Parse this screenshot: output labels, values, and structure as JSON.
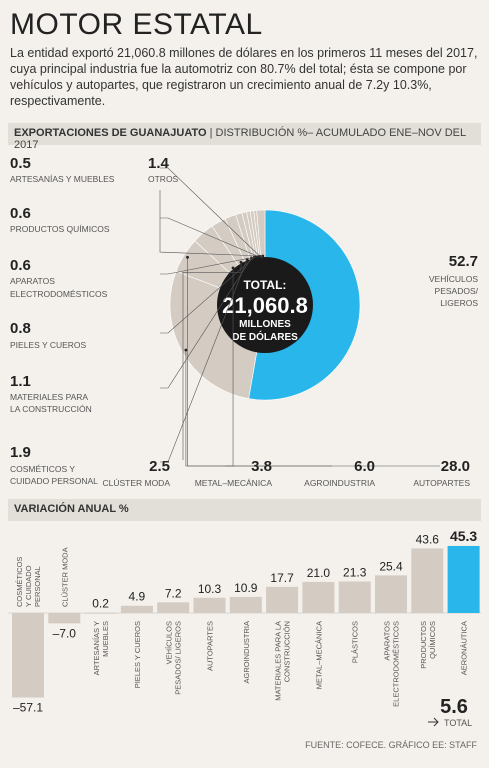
{
  "header": {
    "title": "MOTOR ESTATAL",
    "intro": "La entidad exportó 21,060.8 millones de dólares en los primeros 11 meses del 2017, cuya principal industria fue la automotriz con 80.7% del total; ésta se compone por vehículos y autopartes, que registraron un crecimiento anual de 7.2y 10.3%, respectivamente."
  },
  "section1": {
    "title": "EXPORTACIONES DE GUANAJUATO",
    "subtitle": "| DISTRIBUCIÓN %– ACUMULADO ENE–NOV DEL 2017"
  },
  "section2": {
    "title": "VARIACIÓN ANUAL %"
  },
  "footer": {
    "source": "FUENTE: COFECE. GRÁFICO EE: STAFF"
  },
  "colors": {
    "highlight": "#29b6ea",
    "base": "#d4cbc2",
    "center": "#1a1a1a",
    "background": "#f4f1ec"
  },
  "chart_data": [
    {
      "type": "pie",
      "center_label": {
        "line1": "TOTAL:",
        "line2": "21,060.8",
        "line3": "MILLONES",
        "line4": "DE DÓLARES"
      },
      "slices": [
        {
          "name": "VEHÍCULOS PESADOS/ LIGEROS",
          "value": 52.7,
          "highlight": true
        },
        {
          "name": "AUTOPARTES",
          "value": 28.0
        },
        {
          "name": "AGROINDUSTRIA",
          "value": 6.0
        },
        {
          "name": "METAL–MECÁNICA",
          "value": 3.8
        },
        {
          "name": "CLÚSTER MODA",
          "value": 2.5
        },
        {
          "name": "COSMÉTICOS Y CUIDADO PERSONAL",
          "value": 1.9
        },
        {
          "name": "MATERIALES PARA LA CONSTRUCCIÓN",
          "value": 1.1
        },
        {
          "name": "PIELES Y CUEROS",
          "value": 0.8
        },
        {
          "name": "APARATOS ELECTRODOMÉSTICOS",
          "value": 0.6
        },
        {
          "name": "PRODUCTOS QUÍMICOS",
          "value": 0.6
        },
        {
          "name": "ARTESANÍAS Y MUEBLES",
          "value": 0.5
        },
        {
          "name": "OTROS",
          "value": 1.4
        }
      ],
      "value_labels": [
        "52.7",
        "28.0",
        "6.0",
        "3.8",
        "2.5",
        "1.9",
        "1.1",
        "0.8",
        "0.6",
        "0.6",
        "0.5",
        "1.4"
      ],
      "labels": [
        [
          "VEHÍCULOS",
          "PESADOS/",
          "LIGEROS"
        ],
        [
          "AUTOPARTES"
        ],
        [
          "AGROINDUSTRIA"
        ],
        [
          "METAL–MECÁNICA"
        ],
        [
          "CLÚSTER MODA"
        ],
        [
          "COSMÉTICOS Y",
          "CUIDADO PERSONAL"
        ],
        [
          "MATERIALES PARA",
          "LA CONSTRUCCIÓN"
        ],
        [
          "PIELES Y CUEROS"
        ],
        [
          "APARATOS",
          "ELECTRODOMÉSTICOS"
        ],
        [
          "PRODUCTOS QUÍMICOS"
        ],
        [
          "ARTESANÍAS Y MUEBLES"
        ],
        [
          "OTROS"
        ]
      ]
    },
    {
      "type": "bar",
      "categories": [
        "COSMÉTICOS Y CUIDADO PERSONAL",
        "CLÚSTER MODA",
        "ARTESANÍAS Y MUEBLES",
        "PIELES Y CUEROS",
        "VEHÍCULOS PESADOS/ LIGEROS",
        "AUTOPARTES",
        "AGROINDUSTRIA",
        "MATERIALES PARA LA CONSTRUCCIÓN",
        "METAL–MECÁNICA",
        "PLÁSTICOS",
        "APARATOS ELECTRODOMÉSTICOS",
        "PRODUCTOS QUÍMICOS",
        "AERONÁUTICA"
      ],
      "category_lines": [
        [
          "COSMÉTICOS",
          "Y CUIDADO",
          "PERSONAL"
        ],
        [
          "CLÚSTER MODA"
        ],
        [
          "ARTESANÍAS Y",
          "MUEBLES"
        ],
        [
          "PIELES Y CUEROS"
        ],
        [
          "VEHÍCULOS",
          "PESADOS/ LIGEROS"
        ],
        [
          "AUTOPARTES"
        ],
        [
          "AGROINDUSTRIA"
        ],
        [
          "MATERIALES PARA LA",
          "CONSTRUCCIÓN"
        ],
        [
          "METAL–MECÁNICA"
        ],
        [
          "PLÁSTICOS"
        ],
        [
          "APARATOS",
          "ELECTRODOMÉSTICOS"
        ],
        [
          "PRODUCTOS",
          "QUÍMICOS"
        ],
        [
          "AERONÁUTICA"
        ]
      ],
      "values": [
        -57.1,
        -7.0,
        0.2,
        4.9,
        7.2,
        10.3,
        10.9,
        17.7,
        21.0,
        21.3,
        25.4,
        43.6,
        45.3
      ],
      "value_labels": [
        "–57.1",
        "–7.0",
        "0.2",
        "4.9",
        "7.2",
        "10.3",
        "10.9",
        "17.7",
        "21.0",
        "21.3",
        "25.4",
        "43.6",
        "45.3"
      ],
      "highlight_index": 12,
      "total": {
        "value": "5.6",
        "label": "TOTAL"
      }
    }
  ]
}
